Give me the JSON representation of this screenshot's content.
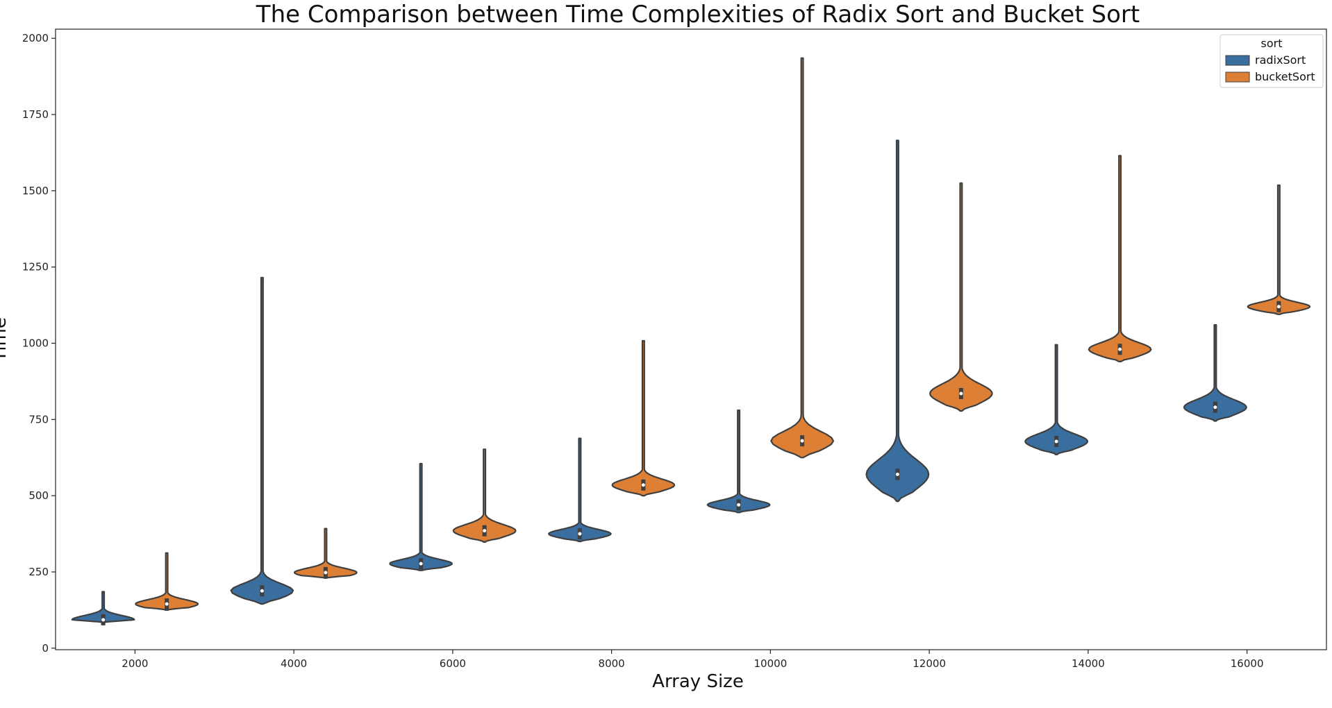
{
  "chart_data": {
    "type": "violin",
    "title": "The Comparison between Time Complexities of Radix Sort and Bucket Sort",
    "xlabel": "Array Size",
    "ylabel": "Time",
    "x_ticks": [
      "2000",
      "4000",
      "6000",
      "8000",
      "10000",
      "12000",
      "14000",
      "16000"
    ],
    "y_ticks": [
      "0",
      "250",
      "500",
      "750",
      "1000",
      "1250",
      "1500",
      "1750",
      "2000"
    ],
    "xlim": [
      1000,
      17000
    ],
    "ylim": [
      -5,
      2030
    ],
    "grid": false,
    "legend": {
      "title": "sort",
      "placement": "top-right",
      "entries": [
        {
          "name": "radixSort",
          "color": "#3A6E9E"
        },
        {
          "name": "bucketSort",
          "color": "#DD8036"
        }
      ]
    },
    "outline_color": "#3F3F3F",
    "series": [
      {
        "name": "radixSort",
        "color": "#3A6E9E",
        "violins": [
          {
            "x": 1600,
            "min": 85,
            "max": 185,
            "median": 93,
            "mode": 93,
            "halfwidth": 400
          },
          {
            "x": 3600,
            "min": 145,
            "max": 1215,
            "median": 188,
            "mode": 188,
            "halfwidth": 400
          },
          {
            "x": 5600,
            "min": 255,
            "max": 605,
            "median": 277,
            "mode": 277,
            "halfwidth": 400
          },
          {
            "x": 7600,
            "min": 350,
            "max": 688,
            "median": 375,
            "mode": 375,
            "halfwidth": 400
          },
          {
            "x": 9600,
            "min": 445,
            "max": 780,
            "median": 470,
            "mode": 470,
            "halfwidth": 400
          },
          {
            "x": 11600,
            "min": 482,
            "max": 1665,
            "median": 570,
            "mode": 570,
            "halfwidth": 400
          },
          {
            "x": 13600,
            "min": 635,
            "max": 995,
            "median": 678,
            "mode": 678,
            "halfwidth": 400
          },
          {
            "x": 15600,
            "min": 745,
            "max": 1060,
            "median": 790,
            "mode": 790,
            "halfwidth": 400
          }
        ]
      },
      {
        "name": "bucketSort",
        "color": "#DD8036",
        "violins": [
          {
            "x": 2400,
            "min": 125,
            "max": 312,
            "median": 145,
            "mode": 145,
            "halfwidth": 400
          },
          {
            "x": 4400,
            "min": 230,
            "max": 392,
            "median": 248,
            "mode": 248,
            "halfwidth": 400
          },
          {
            "x": 6400,
            "min": 348,
            "max": 652,
            "median": 385,
            "mode": 385,
            "halfwidth": 400
          },
          {
            "x": 8400,
            "min": 500,
            "max": 1008,
            "median": 535,
            "mode": 535,
            "halfwidth": 400
          },
          {
            "x": 10400,
            "min": 625,
            "max": 1935,
            "median": 680,
            "mode": 680,
            "halfwidth": 400
          },
          {
            "x": 12400,
            "min": 778,
            "max": 1525,
            "median": 835,
            "mode": 835,
            "halfwidth": 400
          },
          {
            "x": 14400,
            "min": 940,
            "max": 1615,
            "median": 980,
            "mode": 980,
            "halfwidth": 400
          },
          {
            "x": 16400,
            "min": 1095,
            "max": 1518,
            "median": 1120,
            "mode": 1120,
            "halfwidth": 400
          }
        ]
      }
    ]
  }
}
